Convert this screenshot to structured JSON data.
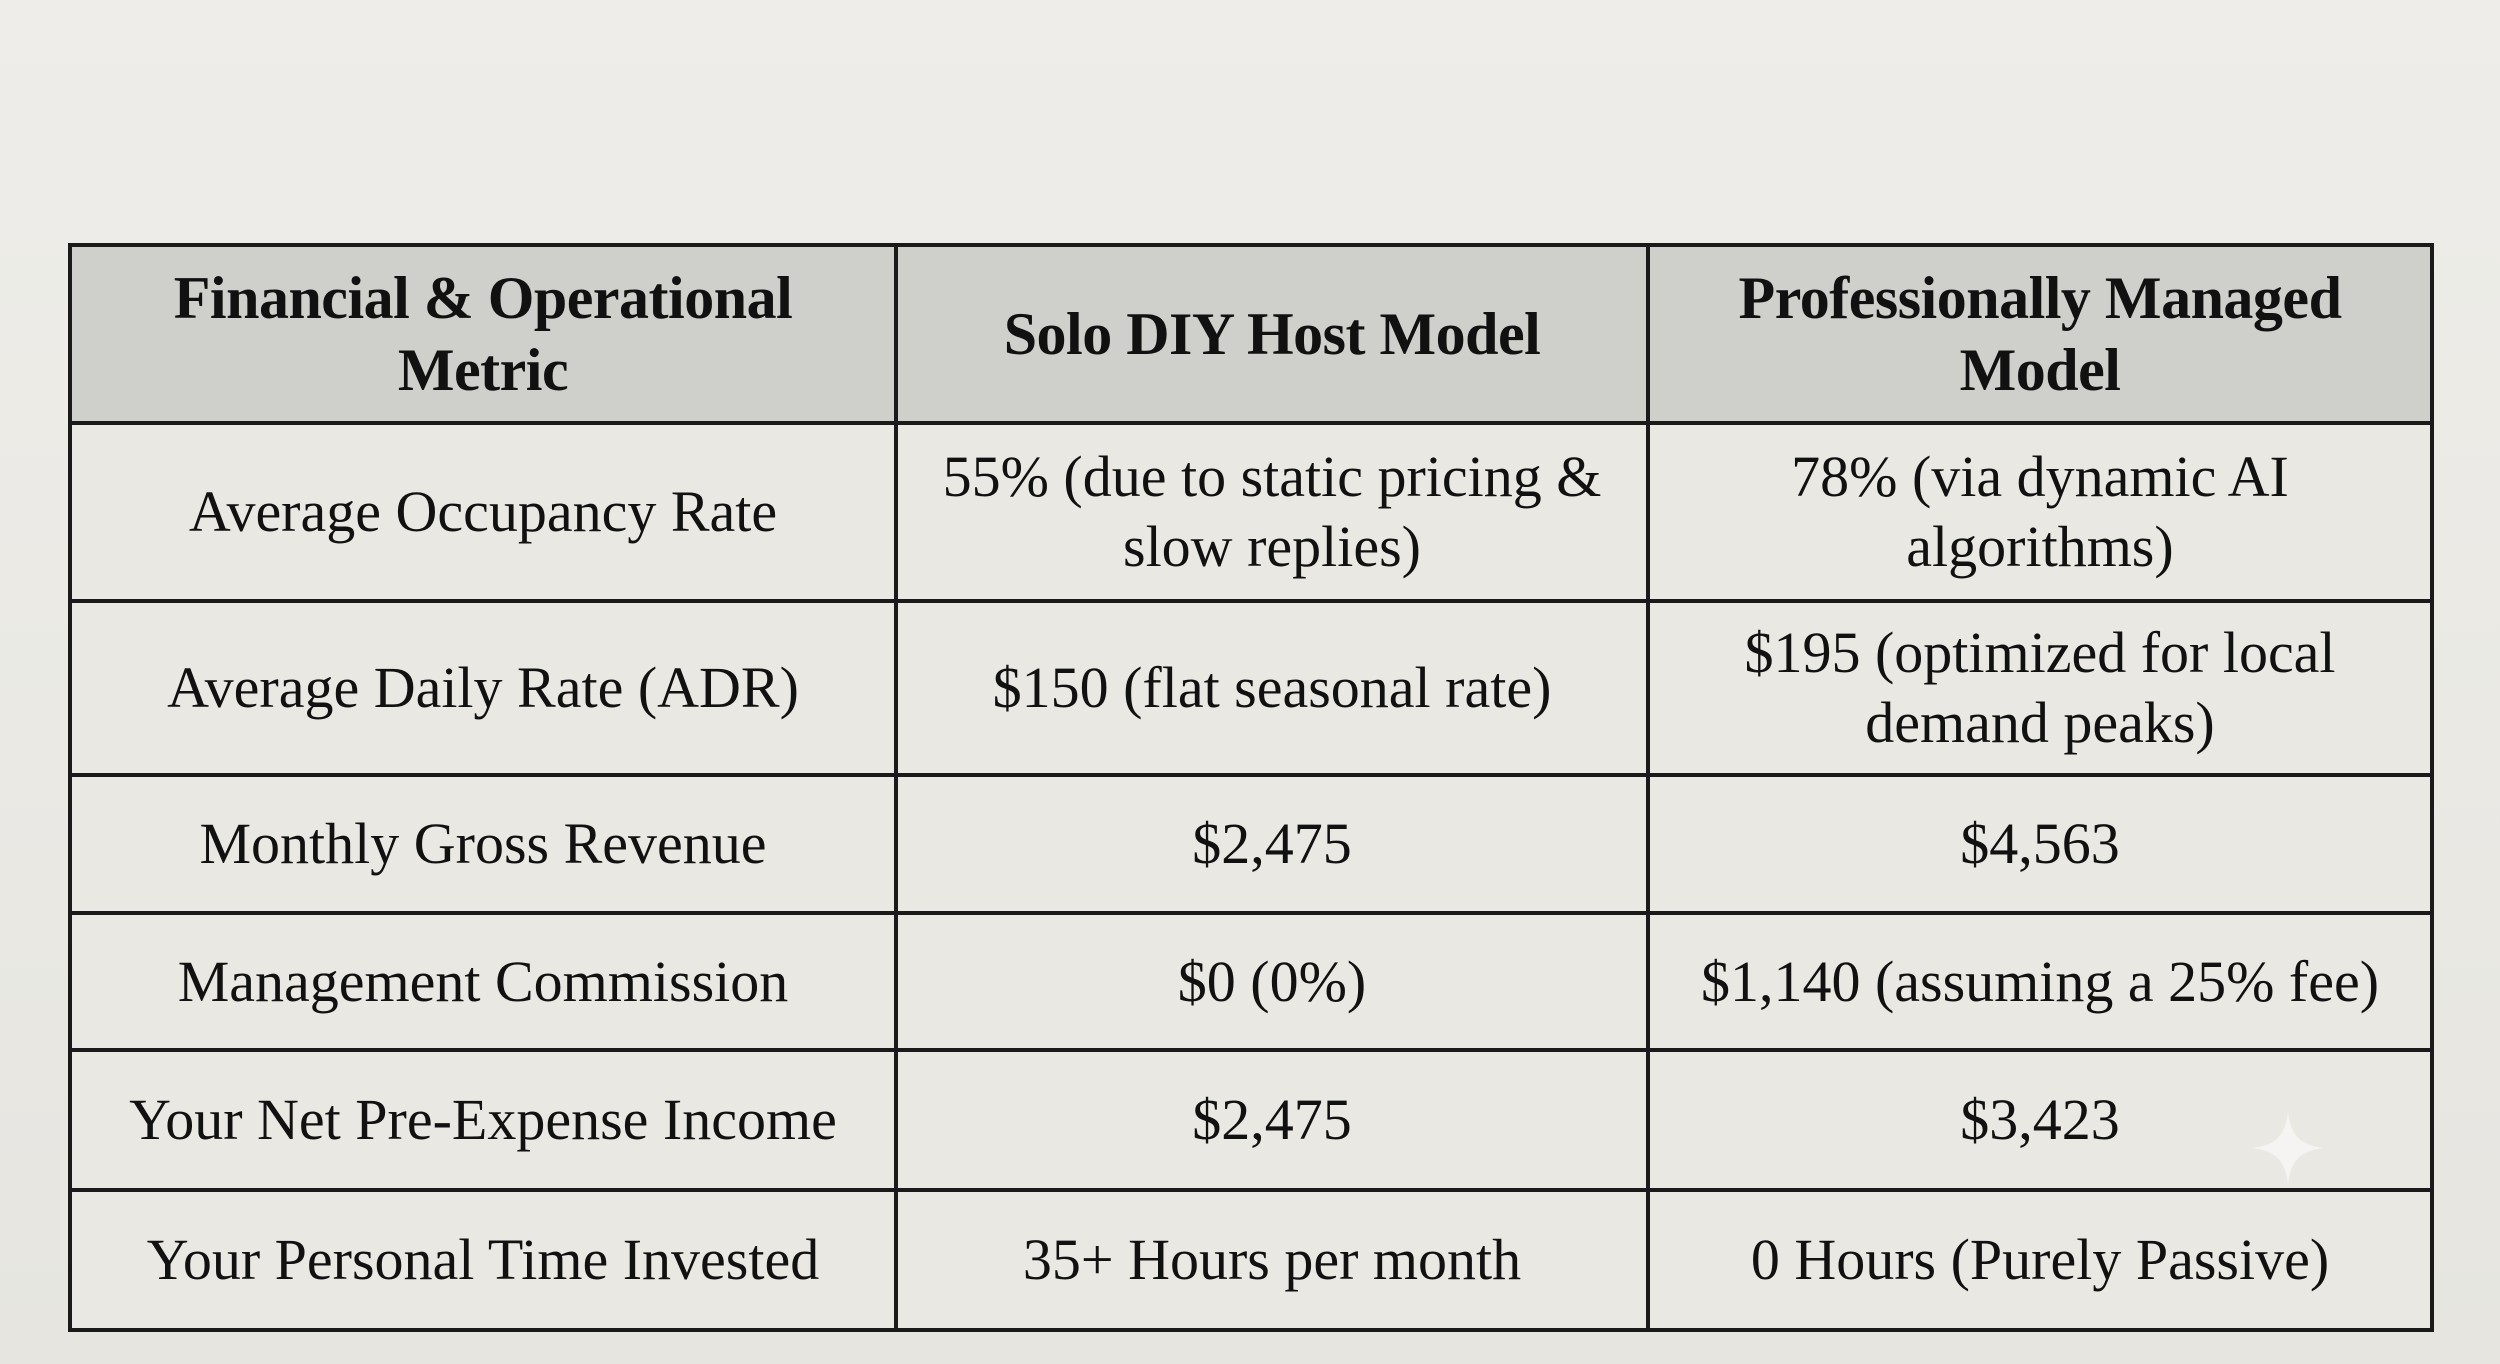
{
  "table": {
    "headers": [
      "Financial & Operational Metric",
      "Solo DIY Host Model",
      "Professionally Managed Model"
    ],
    "rows": [
      {
        "metric": "Average Occupancy Rate",
        "solo": "55% (due to static pricing & slow replies)",
        "managed": "78% (via dynamic AI algorithms)"
      },
      {
        "metric": "Average Daily Rate (ADR)",
        "solo": "$150 (flat seasonal rate)",
        "managed": "$195 (optimized for local demand peaks)"
      },
      {
        "metric": "Monthly Gross Revenue",
        "solo": "$2,475",
        "managed": "$4,563"
      },
      {
        "metric": "Management Commission",
        "solo": "$0 (0%)",
        "managed": "$1,140 (assuming a 25% fee)"
      },
      {
        "metric": "Your Net Pre-Expense Income",
        "solo": "$2,475",
        "managed": "$3,423"
      },
      {
        "metric": "Your Personal Time Invested",
        "solo": "35+ Hours per month",
        "managed": "0 Hours (Purely Passive)"
      }
    ]
  },
  "decoration": {
    "icon": "sparkle-icon",
    "color": "#ffffff"
  }
}
